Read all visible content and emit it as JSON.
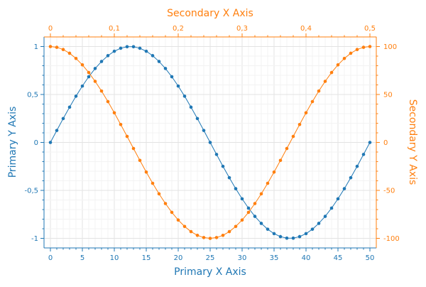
{
  "chart_data": {
    "type": "line",
    "title": "",
    "xlabel": "Primary X Axis",
    "ylabel": "Primary Y Axis",
    "x2label": "Secondary X Axis",
    "y2label": "Secondary Y Axis",
    "xlim": [
      -1,
      51
    ],
    "ylim": [
      -1.1,
      1.1
    ],
    "x2lim": [
      -0.01,
      0.51
    ],
    "y2lim": [
      -110,
      110
    ],
    "x_ticks": [
      "0",
      "5",
      "10",
      "15",
      "20",
      "25",
      "30",
      "35",
      "40",
      "45",
      "50"
    ],
    "y_ticks": [
      "-1",
      "-0,5",
      "0",
      "0,5",
      "1"
    ],
    "x2_ticks": [
      "0",
      "0,1",
      "0,2",
      "0,3",
      "0,4",
      "0,5"
    ],
    "y2_ticks": [
      "-100",
      "-50",
      "0",
      "50",
      "100"
    ],
    "grid": true,
    "legend": "none",
    "colors": {
      "primary": "#1f77b4",
      "secondary": "#ff7f0e",
      "grid": "#e6e6e6",
      "frame": "#cccccc"
    },
    "series": [
      {
        "axis": "primary",
        "x": [
          0,
          1,
          2,
          3,
          4,
          5,
          6,
          7,
          8,
          9,
          10,
          11,
          12,
          13,
          14,
          15,
          16,
          17,
          18,
          19,
          20,
          21,
          22,
          23,
          24,
          25,
          26,
          27,
          28,
          29,
          30,
          31,
          32,
          33,
          34,
          35,
          36,
          37,
          38,
          39,
          40,
          41,
          42,
          43,
          44,
          45,
          46,
          47,
          48,
          49,
          50
        ],
        "y": [
          0,
          0.125,
          0.249,
          0.368,
          0.482,
          0.588,
          0.685,
          0.771,
          0.844,
          0.905,
          0.951,
          0.982,
          0.998,
          0.998,
          0.982,
          0.951,
          0.905,
          0.844,
          0.771,
          0.685,
          0.588,
          0.482,
          0.368,
          0.249,
          0.125,
          0,
          -0.125,
          -0.249,
          -0.368,
          -0.482,
          -0.588,
          -0.685,
          -0.771,
          -0.844,
          -0.905,
          -0.951,
          -0.982,
          -0.998,
          -0.998,
          -0.982,
          -0.951,
          -0.905,
          -0.844,
          -0.771,
          -0.685,
          -0.588,
          -0.482,
          -0.368,
          -0.249,
          -0.125,
          0
        ]
      },
      {
        "axis": "secondary",
        "x": [
          0,
          0.01,
          0.02,
          0.03,
          0.04,
          0.05,
          0.06,
          0.07,
          0.08,
          0.09,
          0.1,
          0.11,
          0.12,
          0.13,
          0.14,
          0.15,
          0.16,
          0.17,
          0.18,
          0.19,
          0.2,
          0.21,
          0.22,
          0.23,
          0.24,
          0.25,
          0.26,
          0.27,
          0.28,
          0.29,
          0.3,
          0.31,
          0.32,
          0.33,
          0.34,
          0.35,
          0.36,
          0.37,
          0.38,
          0.39,
          0.4,
          0.41,
          0.42,
          0.43,
          0.44,
          0.45,
          0.46,
          0.47,
          0.48,
          0.49,
          0.5
        ],
        "y": [
          100,
          99.2,
          96.9,
          93,
          87.6,
          80.9,
          72.9,
          63.7,
          53.6,
          42.6,
          30.9,
          18.7,
          6.3,
          -6.3,
          -18.7,
          -30.9,
          -42.6,
          -53.6,
          -63.7,
          -72.9,
          -80.9,
          -87.6,
          -93,
          -96.9,
          -99.2,
          -100,
          -99.2,
          -96.9,
          -93,
          -87.6,
          -80.9,
          -72.9,
          -63.7,
          -53.6,
          -42.6,
          -30.9,
          -18.7,
          -6.3,
          6.3,
          18.7,
          30.9,
          42.6,
          53.6,
          63.7,
          72.9,
          80.9,
          87.6,
          93,
          96.9,
          99.2,
          100
        ]
      }
    ]
  }
}
